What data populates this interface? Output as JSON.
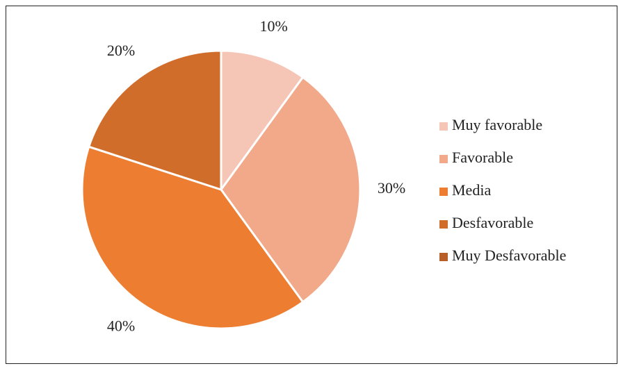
{
  "chart_data": {
    "type": "pie",
    "categories": [
      "Muy favorable",
      "Favorable",
      "Media",
      "Desfavorable",
      "Muy Desfavorable"
    ],
    "values": [
      10,
      30,
      40,
      20,
      0
    ],
    "value_labels": [
      "10%",
      "30%",
      "40%",
      "20%",
      null
    ],
    "colors": [
      "#f5c6b6",
      "#f1a98a",
      "#ed7d31",
      "#d16d2b",
      "#b85e27"
    ],
    "legend": "right"
  }
}
